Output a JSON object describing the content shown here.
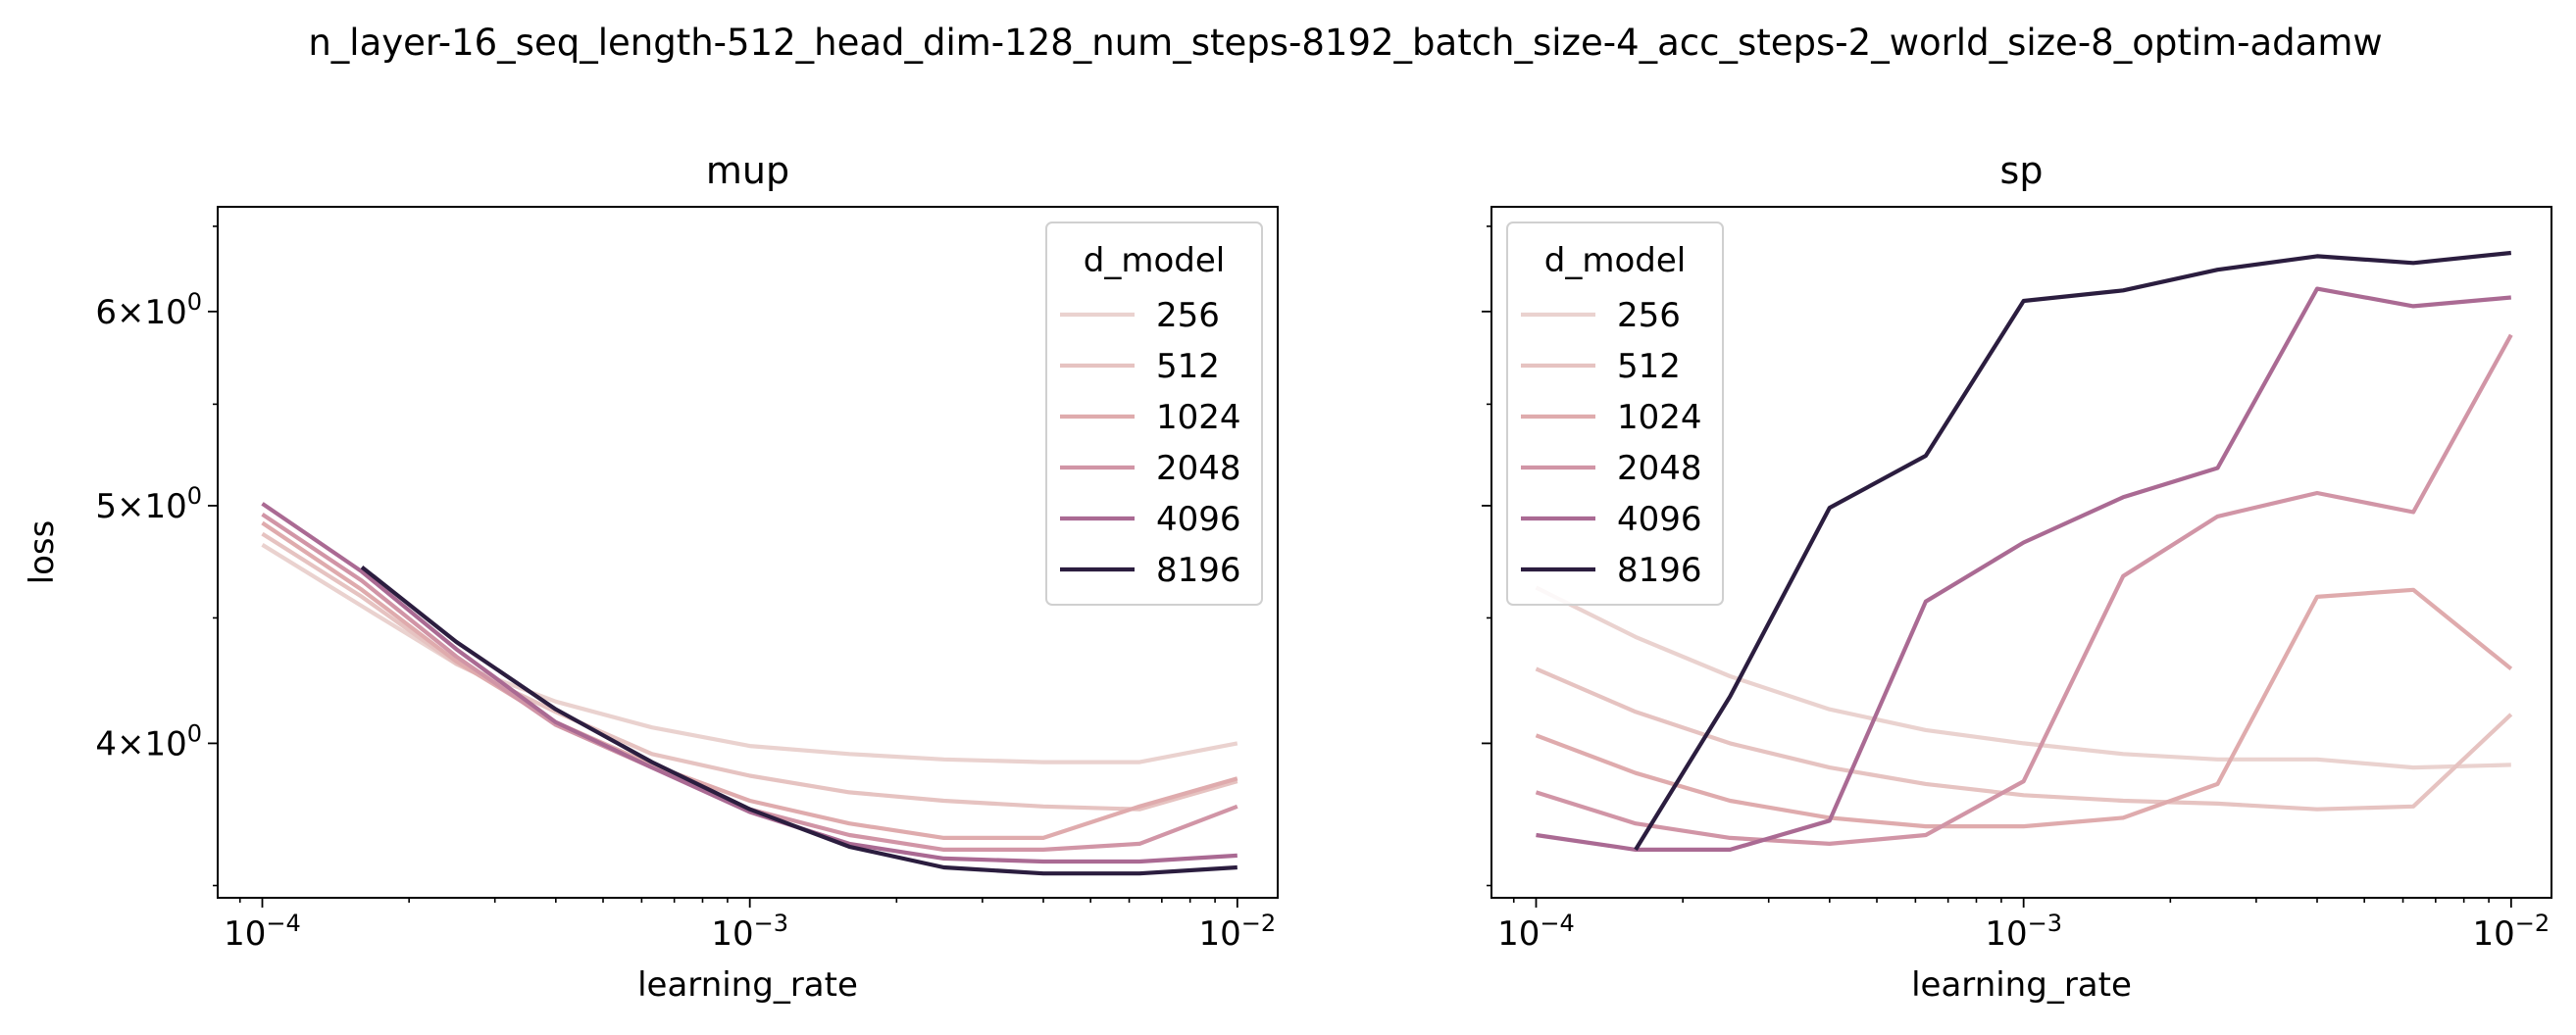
{
  "suptitle": "n_layer-16_seq_length-512_head_dim-128_num_steps-8192_batch_size-4_acc_steps-2_world_size-8_optim-adamw",
  "legend_title": "d_model",
  "colors": {
    "256": "#ead2cf",
    "512": "#e6c3c1",
    "1024": "#dfabad",
    "2048": "#d195a6",
    "4096": "#aa6a93",
    "8196": "#2b1d3f"
  },
  "x_ticks": [
    {
      "value": 0.0001,
      "base": "10",
      "exp": "−4"
    },
    {
      "value": 0.001,
      "base": "10",
      "exp": "−3"
    },
    {
      "value": 0.01,
      "base": "10",
      "exp": "−2"
    }
  ],
  "y_ticks": [
    {
      "value": 4,
      "mant": "4",
      "base": "10",
      "exp": "0"
    },
    {
      "value": 5,
      "mant": "5",
      "base": "10",
      "exp": "0"
    },
    {
      "value": 6,
      "mant": "6",
      "base": "10",
      "exp": "0"
    }
  ],
  "chart_data": [
    {
      "type": "line",
      "title": "mup",
      "xlabel": "learning_rate",
      "ylabel": "loss",
      "xscale": "log",
      "yscale": "log",
      "xlim": [
        8.1e-05,
        0.0121
      ],
      "ylim": [
        3.46,
        6.62
      ],
      "legend_position": "top-right",
      "grid": false,
      "x": [
        0.0001,
        0.00016,
        0.00025,
        0.0004,
        0.00063,
        0.001,
        0.0016,
        0.0025,
        0.004,
        0.0063,
        0.01
      ],
      "series": [
        {
          "name": "256",
          "values": [
            4.82,
            4.55,
            4.31,
            4.16,
            4.06,
            3.99,
            3.96,
            3.94,
            3.93,
            3.93,
            4.0
          ]
        },
        {
          "name": "512",
          "values": [
            4.87,
            4.59,
            4.31,
            4.12,
            3.96,
            3.88,
            3.82,
            3.79,
            3.77,
            3.76,
            3.86
          ]
        },
        {
          "name": "1024",
          "values": [
            4.92,
            4.62,
            4.32,
            4.08,
            3.92,
            3.79,
            3.71,
            3.66,
            3.66,
            3.77,
            3.87
          ]
        },
        {
          "name": "2048",
          "values": [
            4.96,
            4.66,
            4.34,
            4.07,
            3.91,
            3.76,
            3.67,
            3.62,
            3.62,
            3.64,
            3.77
          ]
        },
        {
          "name": "4096",
          "values": [
            5.01,
            4.7,
            4.37,
            4.08,
            3.91,
            3.75,
            3.64,
            3.59,
            3.58,
            3.58,
            3.6
          ]
        },
        {
          "name": "8196",
          "values": [
            null,
            4.72,
            4.4,
            4.13,
            3.93,
            3.76,
            3.63,
            3.56,
            3.54,
            3.54,
            3.56
          ]
        }
      ]
    },
    {
      "type": "line",
      "title": "sp",
      "xlabel": "learning_rate",
      "ylabel": "",
      "xscale": "log",
      "yscale": "log",
      "xlim": [
        8.1e-05,
        0.0121
      ],
      "ylim": [
        3.46,
        6.62
      ],
      "legend_position": "top-left",
      "grid": false,
      "x": [
        0.0001,
        0.00016,
        0.00025,
        0.0004,
        0.00063,
        0.001,
        0.0016,
        0.0025,
        0.004,
        0.0063,
        0.01
      ],
      "series": [
        {
          "name": "256",
          "values": [
            4.63,
            4.42,
            4.26,
            4.13,
            4.05,
            4.0,
            3.96,
            3.94,
            3.94,
            3.91,
            3.92
          ]
        },
        {
          "name": "512",
          "values": [
            4.29,
            4.12,
            4.0,
            3.91,
            3.85,
            3.81,
            3.79,
            3.78,
            3.76,
            3.77,
            4.11
          ]
        },
        {
          "name": "1024",
          "values": [
            4.03,
            3.89,
            3.79,
            3.73,
            3.7,
            3.7,
            3.73,
            3.85,
            4.59,
            4.62,
            4.29
          ]
        },
        {
          "name": "2048",
          "values": [
            3.82,
            3.71,
            3.66,
            3.64,
            3.67,
            3.86,
            4.68,
            4.95,
            5.06,
            4.97,
            5.87
          ]
        },
        {
          "name": "4096",
          "values": [
            3.67,
            3.62,
            3.62,
            3.72,
            4.57,
            4.83,
            5.04,
            5.18,
            6.13,
            6.03,
            6.08
          ]
        },
        {
          "name": "8196",
          "values": [
            null,
            3.62,
            4.18,
            4.99,
            5.24,
            6.06,
            6.12,
            6.24,
            6.32,
            6.28,
            6.34
          ]
        }
      ]
    }
  ]
}
